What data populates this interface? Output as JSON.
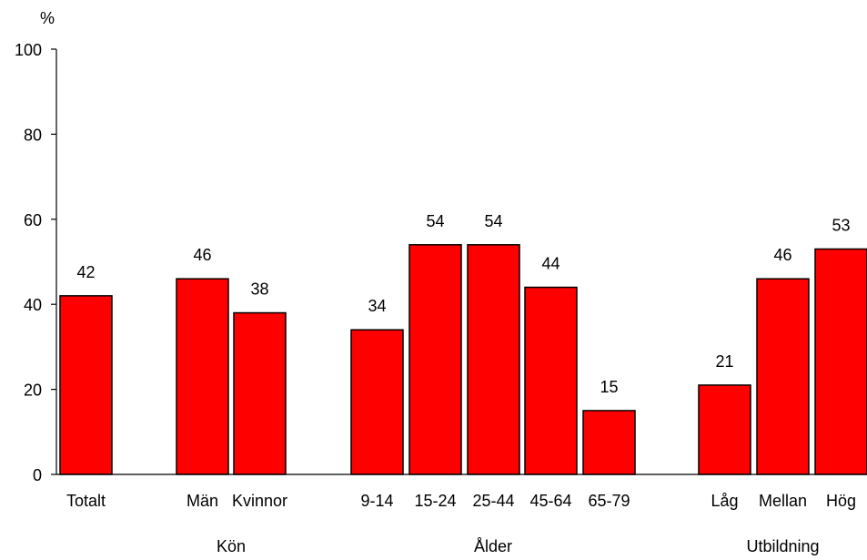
{
  "chart_data": {
    "type": "bar",
    "ylabel": "%",
    "ylim": [
      0,
      100
    ],
    "yticks": [
      0,
      20,
      40,
      60,
      80,
      100
    ],
    "grid": false,
    "bar_color": "#FF0000",
    "bar_outline": "#000000",
    "categories": [
      "Totalt",
      "Män",
      "Kvinnor",
      "9-14",
      "15-24",
      "25-44",
      "45-64",
      "65-79",
      "Låg",
      "Mellan",
      "Hög"
    ],
    "values": [
      42,
      46,
      38,
      34,
      54,
      54,
      44,
      15,
      21,
      46,
      53
    ],
    "data_labels": [
      "42",
      "46",
      "38",
      "34",
      "54",
      "54",
      "44",
      "15",
      "21",
      "46",
      "53"
    ],
    "groups": [
      {
        "label": "",
        "categories": [
          "Totalt"
        ]
      },
      {
        "label": "Kön",
        "categories": [
          "Män",
          "Kvinnor"
        ]
      },
      {
        "label": "Ålder",
        "categories": [
          "9-14",
          "15-24",
          "25-44",
          "45-64",
          "65-79"
        ]
      },
      {
        "label": "Utbildning",
        "categories": [
          "Låg",
          "Mellan",
          "Hög"
        ]
      }
    ]
  }
}
